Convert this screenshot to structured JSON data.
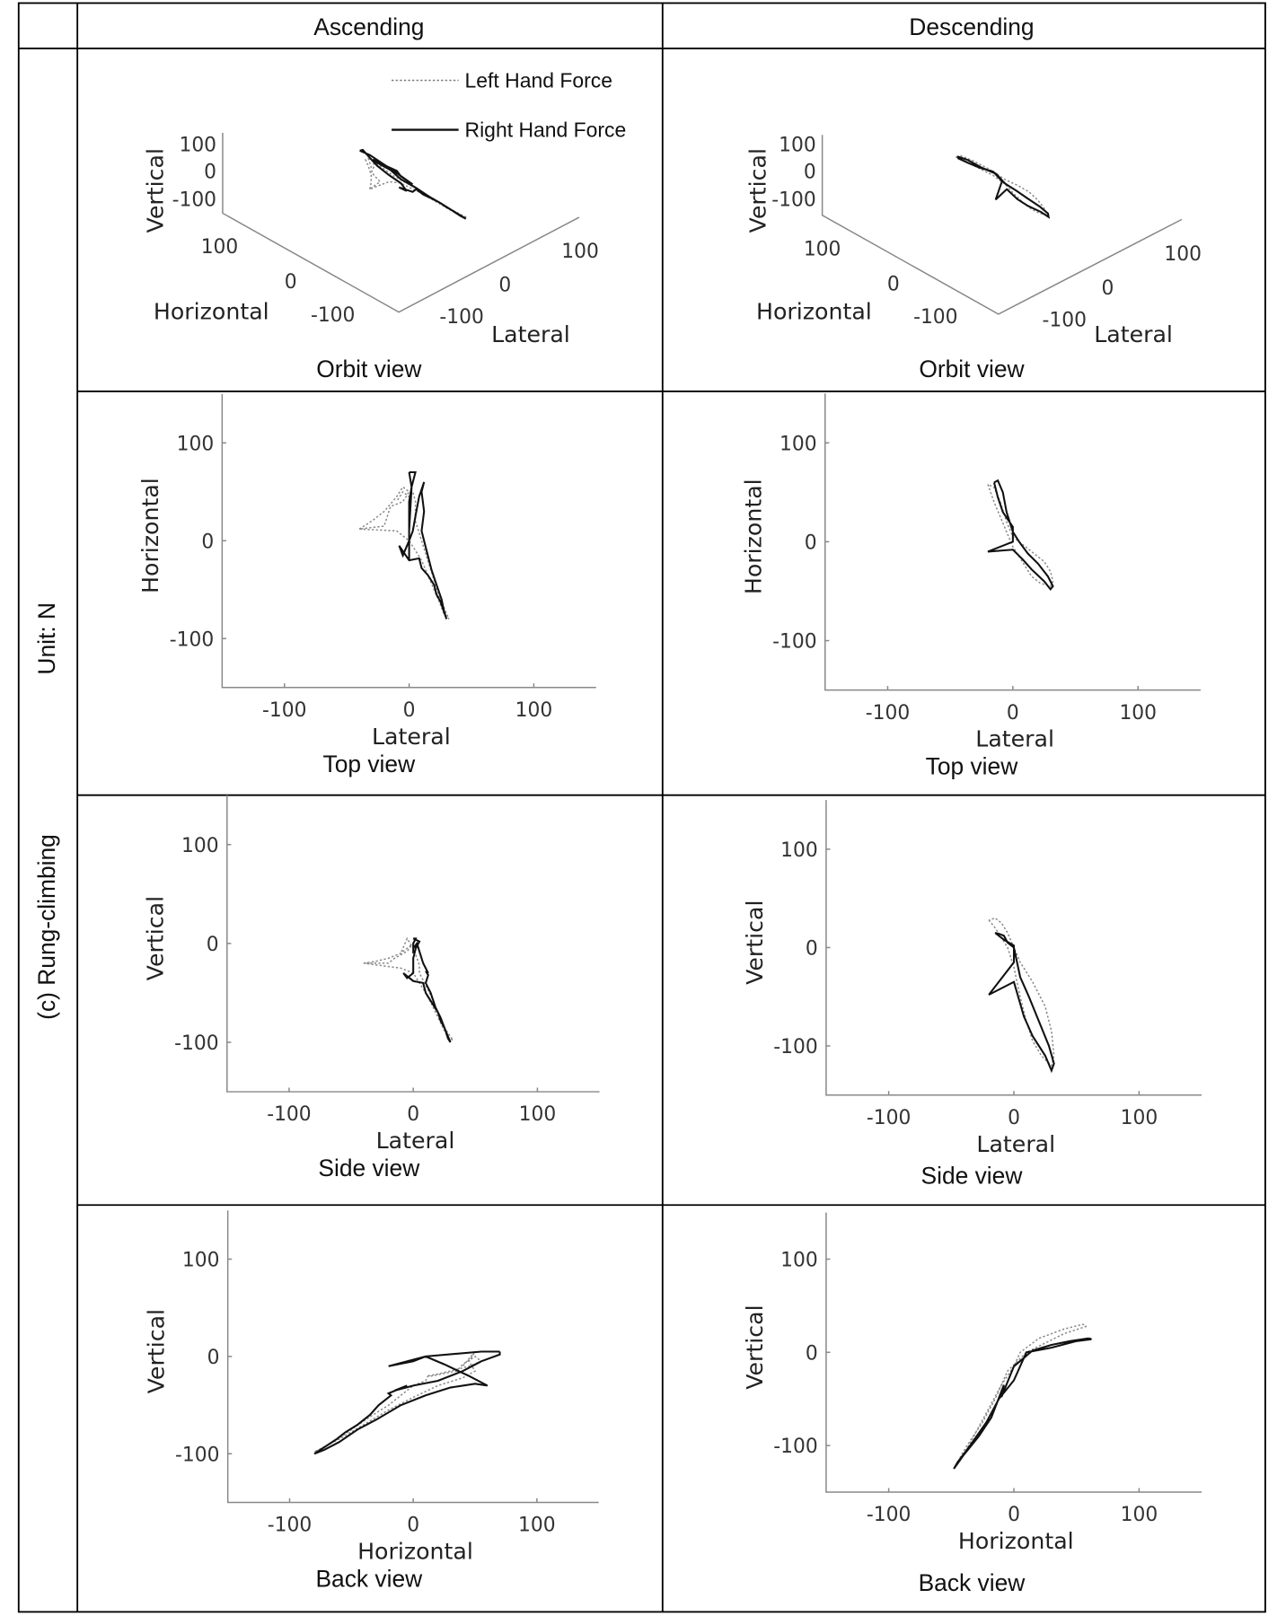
{
  "table": {
    "header": {
      "col1": "Ascending",
      "col2": "Descending"
    },
    "row_labels": {
      "unit": "Unit: N",
      "condition": "(c) Rung-climbing"
    }
  },
  "legend": {
    "left": "Left Hand Force",
    "right": "Right Hand Force"
  },
  "chart_data": {
    "type": "line",
    "units": "N",
    "axes": {
      "lateral": "Lateral",
      "horizontal": "Horizontal",
      "vertical": "Vertical"
    },
    "xlim": [
      -150,
      150
    ],
    "ylim": [
      -150,
      150
    ],
    "ticks": [
      "-100",
      "0",
      "100"
    ],
    "tick_values": [
      -100,
      0,
      100
    ],
    "views": {
      "orbit": "Orbit view",
      "top": "Top view",
      "side": "Side view",
      "back": "Back view"
    },
    "point_order": [
      "lateral",
      "horizontal",
      "vertical"
    ],
    "series": {
      "ascending": {
        "left": {
          "name": "Left Hand Force",
          "style": "dotted",
          "points": [
            [
              -40,
              12,
              -20
            ],
            [
              -30,
              20,
              -18
            ],
            [
              -20,
              30,
              -15
            ],
            [
              -10,
              45,
              -10
            ],
            [
              -5,
              55,
              -5
            ],
            [
              0,
              50,
              0
            ],
            [
              -5,
              40,
              -8
            ],
            [
              -15,
              35,
              -15
            ],
            [
              -20,
              15,
              -20
            ],
            [
              -40,
              12,
              -20
            ],
            [
              -10,
              10,
              -25
            ],
            [
              0,
              0,
              -30
            ],
            [
              5,
              -10,
              -40
            ],
            [
              10,
              -20,
              -50
            ],
            [
              15,
              -35,
              -62
            ],
            [
              20,
              -50,
              -75
            ],
            [
              25,
              -65,
              -88
            ],
            [
              28,
              -75,
              -95
            ],
            [
              32,
              -80,
              -98
            ],
            [
              25,
              -60,
              -85
            ],
            [
              20,
              -40,
              -70
            ],
            [
              15,
              -20,
              -55
            ],
            [
              10,
              0,
              -42
            ],
            [
              5,
              20,
              -30
            ],
            [
              5,
              40,
              -22
            ],
            [
              3,
              50,
              -15
            ],
            [
              0,
              45,
              -5
            ],
            [
              -5,
              50,
              5
            ],
            [
              -10,
              40,
              -10
            ]
          ]
        },
        "right": {
          "name": "Right Hand Force",
          "style": "solid",
          "points": [
            [
              0,
              70,
              5
            ],
            [
              5,
              70,
              2
            ],
            [
              2,
              55,
              -5
            ],
            [
              0,
              40,
              -15
            ],
            [
              0,
              20,
              -25
            ],
            [
              0,
              0,
              -30
            ],
            [
              -5,
              -15,
              -35
            ],
            [
              -8,
              -5,
              -30
            ],
            [
              0,
              -20,
              -38
            ],
            [
              8,
              -18,
              -40
            ],
            [
              10,
              -28,
              -50
            ],
            [
              15,
              -35,
              -60
            ],
            [
              20,
              -45,
              -70
            ],
            [
              22,
              -55,
              -78
            ],
            [
              25,
              -62,
              -85
            ],
            [
              30,
              -80,
              -100
            ],
            [
              28,
              -72,
              -96
            ],
            [
              26,
              -60,
              -88
            ],
            [
              22,
              -45,
              -75
            ],
            [
              18,
              -30,
              -65
            ],
            [
              14,
              -10,
              -50
            ],
            [
              10,
              10,
              -40
            ],
            [
              12,
              30,
              -32
            ],
            [
              10,
              50,
              -28
            ],
            [
              12,
              60,
              -30
            ],
            [
              8,
              45,
              -20
            ],
            [
              5,
              25,
              -8
            ],
            [
              3,
              10,
              0
            ],
            [
              0,
              0,
              -5
            ],
            [
              0,
              -20,
              -10
            ],
            [
              0,
              10,
              0
            ],
            [
              2,
              55,
              5
            ],
            [
              0,
              70,
              5
            ]
          ]
        }
      },
      "descending": {
        "left": {
          "name": "Left Hand Force",
          "style": "dotted",
          "points": [
            [
              -20,
              58,
              28
            ],
            [
              -15,
              40,
              20
            ],
            [
              -10,
              25,
              10
            ],
            [
              -5,
              10,
              0
            ],
            [
              0,
              -5,
              -20
            ],
            [
              5,
              -15,
              -50
            ],
            [
              10,
              -25,
              -75
            ],
            [
              15,
              -35,
              -95
            ],
            [
              22,
              -42,
              -110
            ],
            [
              30,
              -45,
              -120
            ],
            [
              32,
              -40,
              -110
            ],
            [
              30,
              -30,
              -85
            ],
            [
              25,
              -20,
              -60
            ],
            [
              15,
              -10,
              -35
            ],
            [
              5,
              0,
              -15
            ],
            [
              0,
              5,
              0
            ],
            [
              -5,
              20,
              15
            ],
            [
              -10,
              40,
              25
            ],
            [
              -15,
              55,
              30
            ],
            [
              -20,
              58,
              28
            ]
          ]
        },
        "right": {
          "name": "Right Hand Force",
          "style": "solid",
          "points": [
            [
              -15,
              60,
              15
            ],
            [
              -12,
              45,
              12
            ],
            [
              -8,
              30,
              8
            ],
            [
              0,
              15,
              2
            ],
            [
              0,
              0,
              -15
            ],
            [
              -20,
              -10,
              -48
            ],
            [
              0,
              -8,
              -35
            ],
            [
              8,
              -18,
              -70
            ],
            [
              15,
              -28,
              -90
            ],
            [
              25,
              -40,
              -110
            ],
            [
              30,
              -48,
              -125
            ],
            [
              32,
              -45,
              -118
            ],
            [
              28,
              -35,
              -100
            ],
            [
              20,
              -22,
              -75
            ],
            [
              12,
              -12,
              -50
            ],
            [
              5,
              0,
              -30
            ],
            [
              0,
              10,
              0
            ],
            [
              -5,
              30,
              5
            ],
            [
              -8,
              50,
              12
            ],
            [
              -12,
              62,
              14
            ],
            [
              -15,
              60,
              15
            ]
          ]
        }
      }
    }
  }
}
